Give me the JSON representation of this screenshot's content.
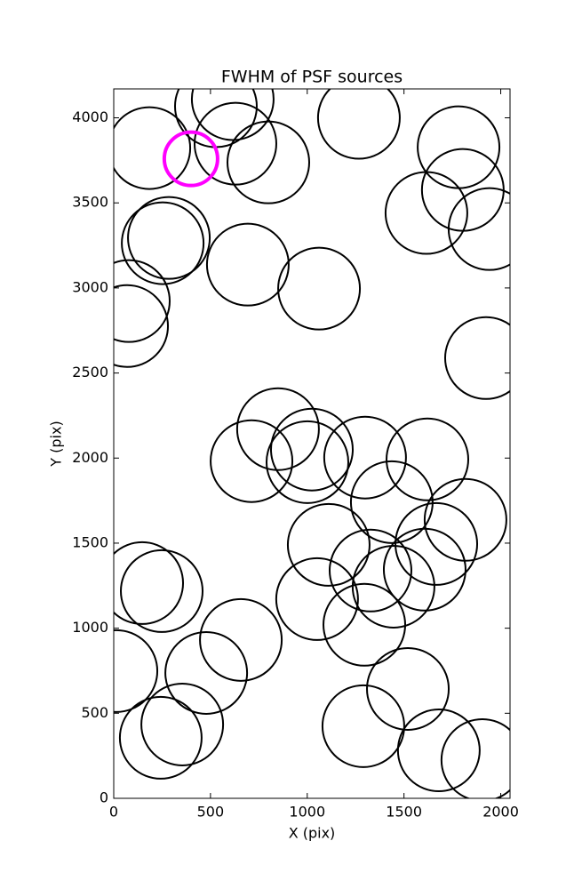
{
  "chart_data": {
    "type": "scatter",
    "title": "FWHM of PSF sources",
    "x_label": "X (pix)",
    "y_label": "Y (pix)",
    "xlim": [
      0,
      2048
    ],
    "ylim": [
      0,
      4170
    ],
    "xticks": [
      0,
      500,
      1000,
      1500,
      2000
    ],
    "yticks": [
      0,
      500,
      1000,
      1500,
      2000,
      2500,
      3000,
      3500,
      4000
    ],
    "series": [
      {
        "color": "#000000",
        "x": [
          184,
          528,
          615,
          629,
          799,
          1267,
          1782,
          1616,
          1804,
          1942,
          285,
          253,
          693,
          1061,
          78,
          69,
          1924,
          849,
          712,
          1024,
          1001,
          1299,
          1621,
          1437,
          1818,
          1111,
          1667,
          1327,
          1607,
          1446,
          147,
          248,
          1051,
          1295,
          657,
          14,
          478,
          1520,
          354,
          243,
          1290,
          1680,
          1905
        ],
        "values": [
          3822,
          4068,
          4110,
          3848,
          3738,
          4000,
          3827,
          3441,
          3576,
          3346,
          3294,
          3263,
          3137,
          2996,
          2923,
          2776,
          2588,
          2170,
          1982,
          2050,
          1976,
          2003,
          1992,
          1741,
          1637,
          1490,
          1495,
          1339,
          1344,
          1244,
          1265,
          1218,
          1171,
          1020,
          931,
          748,
          737,
          643,
          434,
          356,
          424,
          282,
          225
        ]
      },
      {
        "color": "#ff00ff",
        "x": [
          399
        ],
        "values": [
          3759
        ]
      }
    ]
  }
}
